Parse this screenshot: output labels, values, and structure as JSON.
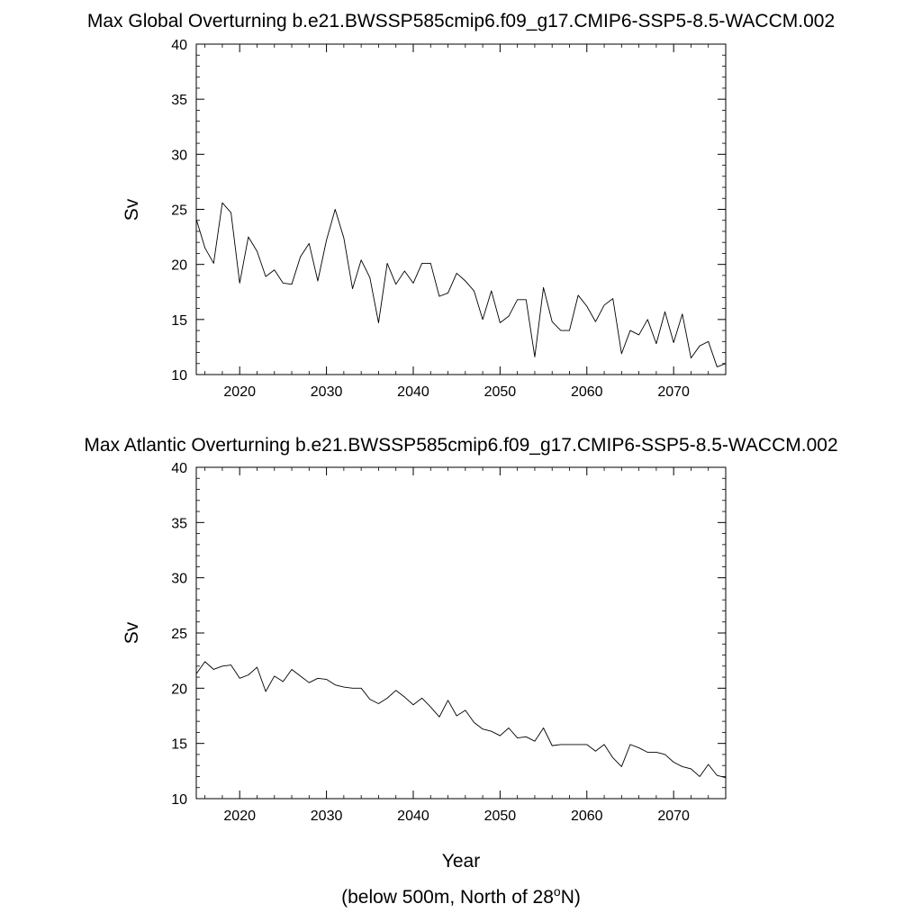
{
  "chart_data": [
    {
      "type": "line",
      "title": "Max Global Overturning b.e21.BWSSP585cmip6.f09_g17.CMIP6-SSP5-8.5-WACCM.002",
      "xlabel": "",
      "ylabel": "Sv",
      "xlim": [
        2015,
        2076
      ],
      "ylim": [
        10,
        40
      ],
      "xticks": [
        2020,
        2030,
        2040,
        2050,
        2060,
        2070
      ],
      "yticks": [
        10,
        15,
        20,
        25,
        30,
        35,
        40
      ],
      "grid": false,
      "series": [
        {
          "x": [
            2015,
            2016,
            2017,
            2018,
            2019,
            2020,
            2021,
            2022,
            2023,
            2024,
            2025,
            2026,
            2027,
            2028,
            2029,
            2030,
            2031,
            2032,
            2033,
            2034,
            2035,
            2036,
            2037,
            2038,
            2039,
            2040,
            2041,
            2042,
            2043,
            2044,
            2045,
            2046,
            2047,
            2048,
            2049,
            2050,
            2051,
            2052,
            2053,
            2054,
            2055,
            2056,
            2057,
            2058,
            2059,
            2060,
            2061,
            2062,
            2063,
            2064,
            2065,
            2066,
            2067,
            2068,
            2069,
            2070,
            2071,
            2072,
            2073,
            2074,
            2075,
            2076
          ],
          "values": [
            24.1,
            21.5,
            20.1,
            25.6,
            24.7,
            18.3,
            22.5,
            21.2,
            18.9,
            19.5,
            18.3,
            18.2,
            20.7,
            21.9,
            18.5,
            22.2,
            25.0,
            22.4,
            17.8,
            20.4,
            18.8,
            14.7,
            20.1,
            18.2,
            19.4,
            18.3,
            20.1,
            20.1,
            17.1,
            17.4,
            19.2,
            18.5,
            17.6,
            15.0,
            17.6,
            14.7,
            15.3,
            16.8,
            16.8,
            11.6,
            17.9,
            14.8,
            14.0,
            14.0,
            17.2,
            16.2,
            14.8,
            16.3,
            16.9,
            11.9,
            14.0,
            13.6,
            15.0,
            12.8,
            15.7,
            12.9,
            15.5,
            11.5,
            12.6,
            13.0,
            10.7,
            11.0
          ]
        }
      ]
    },
    {
      "type": "line",
      "title": "Max Atlantic Overturning b.e21.BWSSP585cmip6.f09_g17.CMIP6-SSP5-8.5-WACCM.002",
      "xlabel": "Year",
      "ylabel": "Sv",
      "xlim": [
        2015,
        2076
      ],
      "ylim": [
        10,
        40
      ],
      "xticks": [
        2020,
        2030,
        2040,
        2050,
        2060,
        2070
      ],
      "yticks": [
        10,
        15,
        20,
        25,
        30,
        35,
        40
      ],
      "grid": false,
      "series": [
        {
          "x": [
            2015,
            2016,
            2017,
            2018,
            2019,
            2020,
            2021,
            2022,
            2023,
            2024,
            2025,
            2026,
            2027,
            2028,
            2029,
            2030,
            2031,
            2032,
            2033,
            2034,
            2035,
            2036,
            2037,
            2038,
            2039,
            2040,
            2041,
            2042,
            2043,
            2044,
            2045,
            2046,
            2047,
            2048,
            2049,
            2050,
            2051,
            2052,
            2053,
            2054,
            2055,
            2056,
            2057,
            2058,
            2059,
            2060,
            2061,
            2062,
            2063,
            2064,
            2065,
            2066,
            2067,
            2068,
            2069,
            2070,
            2071,
            2072,
            2073,
            2074,
            2075,
            2076
          ],
          "values": [
            21.3,
            22.4,
            21.7,
            22.0,
            22.1,
            20.9,
            21.2,
            21.9,
            19.7,
            21.1,
            20.6,
            21.7,
            21.1,
            20.5,
            20.9,
            20.8,
            20.3,
            20.1,
            20.0,
            20.0,
            19.0,
            18.6,
            19.1,
            19.8,
            19.2,
            18.5,
            19.1,
            18.3,
            17.4,
            18.9,
            17.5,
            18.0,
            16.9,
            16.3,
            16.1,
            15.7,
            16.4,
            15.5,
            15.6,
            15.2,
            16.4,
            14.8,
            14.9,
            14.9,
            14.9,
            14.9,
            14.3,
            14.9,
            13.7,
            12.9,
            14.9,
            14.6,
            14.2,
            14.2,
            14.0,
            13.3,
            12.9,
            12.7,
            12.0,
            13.1,
            12.1,
            11.9
          ]
        }
      ]
    }
  ],
  "footnote": {
    "prefix": "(below 500m, North of 28",
    "superscript": "o",
    "suffix": "N)"
  }
}
